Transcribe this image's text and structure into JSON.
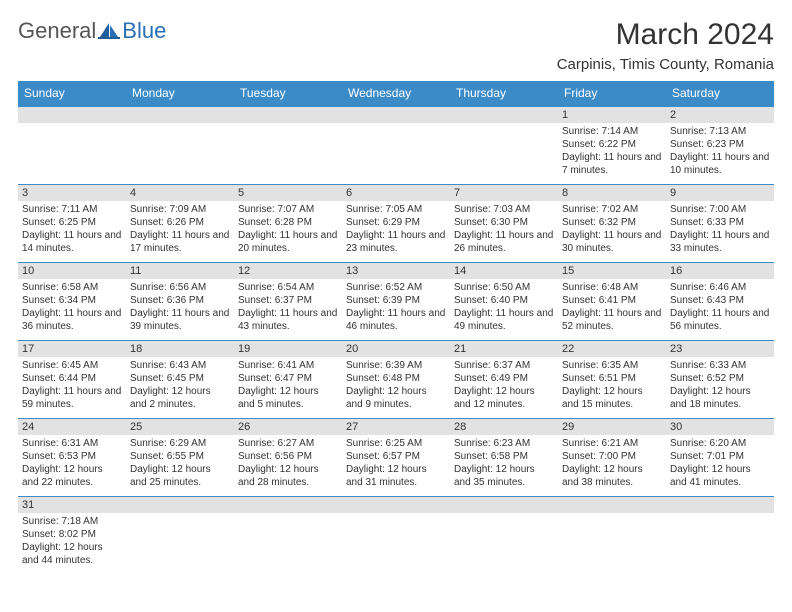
{
  "logo": {
    "general": "General",
    "blue": "Blue"
  },
  "title": "March 2024",
  "location": "Carpinis, Timis County, Romania",
  "weekdays": [
    "Sunday",
    "Monday",
    "Tuesday",
    "Wednesday",
    "Thursday",
    "Friday",
    "Saturday"
  ],
  "colors": {
    "header_bg": "#3b8bc9",
    "header_text": "#ffffff",
    "daynum_bg": "#e2e2e2",
    "border": "#3b8bc9",
    "brand_blue": "#2a6fb5"
  },
  "weeks": [
    [
      null,
      null,
      null,
      null,
      null,
      {
        "n": "1",
        "sunrise": "Sunrise: 7:14 AM",
        "sunset": "Sunset: 6:22 PM",
        "daylight": "Daylight: 11 hours and 7 minutes."
      },
      {
        "n": "2",
        "sunrise": "Sunrise: 7:13 AM",
        "sunset": "Sunset: 6:23 PM",
        "daylight": "Daylight: 11 hours and 10 minutes."
      }
    ],
    [
      {
        "n": "3",
        "sunrise": "Sunrise: 7:11 AM",
        "sunset": "Sunset: 6:25 PM",
        "daylight": "Daylight: 11 hours and 14 minutes."
      },
      {
        "n": "4",
        "sunrise": "Sunrise: 7:09 AM",
        "sunset": "Sunset: 6:26 PM",
        "daylight": "Daylight: 11 hours and 17 minutes."
      },
      {
        "n": "5",
        "sunrise": "Sunrise: 7:07 AM",
        "sunset": "Sunset: 6:28 PM",
        "daylight": "Daylight: 11 hours and 20 minutes."
      },
      {
        "n": "6",
        "sunrise": "Sunrise: 7:05 AM",
        "sunset": "Sunset: 6:29 PM",
        "daylight": "Daylight: 11 hours and 23 minutes."
      },
      {
        "n": "7",
        "sunrise": "Sunrise: 7:03 AM",
        "sunset": "Sunset: 6:30 PM",
        "daylight": "Daylight: 11 hours and 26 minutes."
      },
      {
        "n": "8",
        "sunrise": "Sunrise: 7:02 AM",
        "sunset": "Sunset: 6:32 PM",
        "daylight": "Daylight: 11 hours and 30 minutes."
      },
      {
        "n": "9",
        "sunrise": "Sunrise: 7:00 AM",
        "sunset": "Sunset: 6:33 PM",
        "daylight": "Daylight: 11 hours and 33 minutes."
      }
    ],
    [
      {
        "n": "10",
        "sunrise": "Sunrise: 6:58 AM",
        "sunset": "Sunset: 6:34 PM",
        "daylight": "Daylight: 11 hours and 36 minutes."
      },
      {
        "n": "11",
        "sunrise": "Sunrise: 6:56 AM",
        "sunset": "Sunset: 6:36 PM",
        "daylight": "Daylight: 11 hours and 39 minutes."
      },
      {
        "n": "12",
        "sunrise": "Sunrise: 6:54 AM",
        "sunset": "Sunset: 6:37 PM",
        "daylight": "Daylight: 11 hours and 43 minutes."
      },
      {
        "n": "13",
        "sunrise": "Sunrise: 6:52 AM",
        "sunset": "Sunset: 6:39 PM",
        "daylight": "Daylight: 11 hours and 46 minutes."
      },
      {
        "n": "14",
        "sunrise": "Sunrise: 6:50 AM",
        "sunset": "Sunset: 6:40 PM",
        "daylight": "Daylight: 11 hours and 49 minutes."
      },
      {
        "n": "15",
        "sunrise": "Sunrise: 6:48 AM",
        "sunset": "Sunset: 6:41 PM",
        "daylight": "Daylight: 11 hours and 52 minutes."
      },
      {
        "n": "16",
        "sunrise": "Sunrise: 6:46 AM",
        "sunset": "Sunset: 6:43 PM",
        "daylight": "Daylight: 11 hours and 56 minutes."
      }
    ],
    [
      {
        "n": "17",
        "sunrise": "Sunrise: 6:45 AM",
        "sunset": "Sunset: 6:44 PM",
        "daylight": "Daylight: 11 hours and 59 minutes."
      },
      {
        "n": "18",
        "sunrise": "Sunrise: 6:43 AM",
        "sunset": "Sunset: 6:45 PM",
        "daylight": "Daylight: 12 hours and 2 minutes."
      },
      {
        "n": "19",
        "sunrise": "Sunrise: 6:41 AM",
        "sunset": "Sunset: 6:47 PM",
        "daylight": "Daylight: 12 hours and 5 minutes."
      },
      {
        "n": "20",
        "sunrise": "Sunrise: 6:39 AM",
        "sunset": "Sunset: 6:48 PM",
        "daylight": "Daylight: 12 hours and 9 minutes."
      },
      {
        "n": "21",
        "sunrise": "Sunrise: 6:37 AM",
        "sunset": "Sunset: 6:49 PM",
        "daylight": "Daylight: 12 hours and 12 minutes."
      },
      {
        "n": "22",
        "sunrise": "Sunrise: 6:35 AM",
        "sunset": "Sunset: 6:51 PM",
        "daylight": "Daylight: 12 hours and 15 minutes."
      },
      {
        "n": "23",
        "sunrise": "Sunrise: 6:33 AM",
        "sunset": "Sunset: 6:52 PM",
        "daylight": "Daylight: 12 hours and 18 minutes."
      }
    ],
    [
      {
        "n": "24",
        "sunrise": "Sunrise: 6:31 AM",
        "sunset": "Sunset: 6:53 PM",
        "daylight": "Daylight: 12 hours and 22 minutes."
      },
      {
        "n": "25",
        "sunrise": "Sunrise: 6:29 AM",
        "sunset": "Sunset: 6:55 PM",
        "daylight": "Daylight: 12 hours and 25 minutes."
      },
      {
        "n": "26",
        "sunrise": "Sunrise: 6:27 AM",
        "sunset": "Sunset: 6:56 PM",
        "daylight": "Daylight: 12 hours and 28 minutes."
      },
      {
        "n": "27",
        "sunrise": "Sunrise: 6:25 AM",
        "sunset": "Sunset: 6:57 PM",
        "daylight": "Daylight: 12 hours and 31 minutes."
      },
      {
        "n": "28",
        "sunrise": "Sunrise: 6:23 AM",
        "sunset": "Sunset: 6:58 PM",
        "daylight": "Daylight: 12 hours and 35 minutes."
      },
      {
        "n": "29",
        "sunrise": "Sunrise: 6:21 AM",
        "sunset": "Sunset: 7:00 PM",
        "daylight": "Daylight: 12 hours and 38 minutes."
      },
      {
        "n": "30",
        "sunrise": "Sunrise: 6:20 AM",
        "sunset": "Sunset: 7:01 PM",
        "daylight": "Daylight: 12 hours and 41 minutes."
      }
    ],
    [
      {
        "n": "31",
        "sunrise": "Sunrise: 7:18 AM",
        "sunset": "Sunset: 8:02 PM",
        "daylight": "Daylight: 12 hours and 44 minutes."
      },
      null,
      null,
      null,
      null,
      null,
      null
    ]
  ]
}
